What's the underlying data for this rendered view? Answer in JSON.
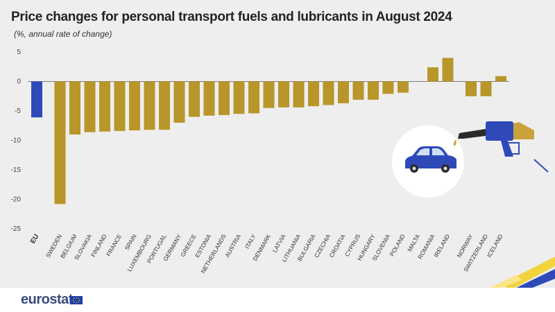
{
  "title": "Price changes for personal transport fuels and lubricants in August 2024",
  "subtitle": "(%, annual rate of change)",
  "footer": {
    "logo": "eurostat"
  },
  "colors": {
    "eu": "#2f4ab8",
    "country": "#b8962a",
    "axis": "#555555"
  },
  "chart_data": {
    "type": "bar",
    "title": "Price changes for personal transport fuels and lubricants in August 2024",
    "ylabel": "%, annual rate of change",
    "ylim": [
      -25,
      5
    ],
    "yticks": [
      5,
      0,
      -5,
      -10,
      -15,
      -20,
      -25
    ],
    "categories": [
      "EU",
      "SWEDEN",
      "BELGIUM",
      "SLOVAKIA",
      "FINLAND",
      "FRANCE",
      "SPAIN",
      "LUXEMBOURG",
      "PORTUGAL",
      "GERMANY",
      "GREECE",
      "ESTONIA",
      "NETHERLANDS",
      "AUSTRIA",
      "ITALY",
      "DENMARK",
      "LATVIA",
      "LITHUANIA",
      "BULGARIA",
      "CZECHIA",
      "CROATIA",
      "CYPRUS",
      "HUNGARY",
      "SLOVENIA",
      "POLAND",
      "MALTA",
      "ROMANIA",
      "IRELAND",
      "NORWAY",
      "SWITZERLAND",
      "ICELAND"
    ],
    "values": [
      -6.1,
      -20.8,
      -9.0,
      -8.6,
      -8.5,
      -8.4,
      -8.3,
      -8.2,
      -8.2,
      -7.0,
      -6.0,
      -5.8,
      -5.7,
      -5.5,
      -5.4,
      -4.5,
      -4.4,
      -4.4,
      -4.2,
      -4.0,
      -3.7,
      -3.1,
      -3.1,
      -2.1,
      -1.9,
      0.0,
      2.4,
      4.0,
      -2.5,
      -2.5,
      0.9
    ],
    "groups": [
      "eu",
      "country",
      "country",
      "country",
      "country",
      "country",
      "country",
      "country",
      "country",
      "country",
      "country",
      "country",
      "country",
      "country",
      "country",
      "country",
      "country",
      "country",
      "country",
      "country",
      "country",
      "country",
      "country",
      "country",
      "country",
      "country",
      "country",
      "country",
      "efta",
      "efta",
      "efta"
    ]
  }
}
